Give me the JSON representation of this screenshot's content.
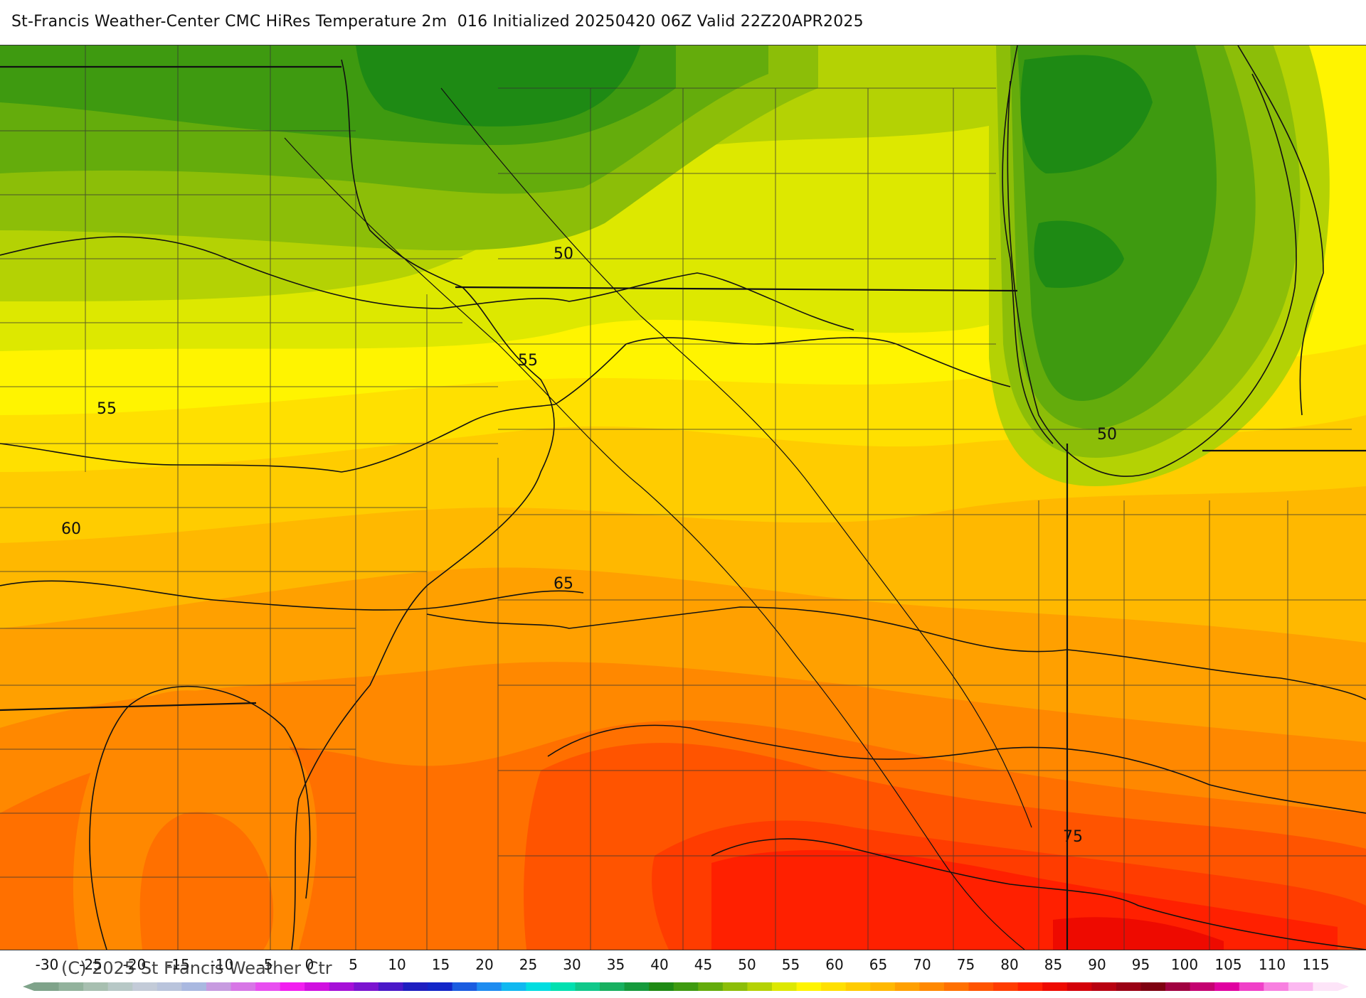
{
  "title": "St-Francis Weather-Center CMC HiRes Temperature 2m  016 Initialized 20250420 06Z Valid 22Z20APR2025",
  "copyright": "(C) 2025 St Francis Weather Ctr",
  "colorbar": {
    "ticks": [
      "-30",
      "-25",
      "-20",
      "-15",
      "-10",
      "-5",
      "0",
      "5",
      "10",
      "15",
      "20",
      "25",
      "30",
      "35",
      "40",
      "45",
      "50",
      "55",
      "60",
      "65",
      "70",
      "75",
      "80",
      "85",
      "90",
      "95",
      "100",
      "105",
      "110",
      "115"
    ],
    "colors": [
      "#7fa38a",
      "#92b29c",
      "#a7bfb0",
      "#b7c8c6",
      "#c3cbd8",
      "#b9c4dc",
      "#a9b8e0",
      "#c79be0",
      "#d776e6",
      "#e84ef0",
      "#f21ef0",
      "#d010e0",
      "#a610d8",
      "#7b14d0",
      "#4a18c8",
      "#1e1ec0",
      "#1226c8",
      "#1a5ce0",
      "#1e8cf0",
      "#10b8f0",
      "#00dde0",
      "#00e0b0",
      "#10c88a",
      "#18b060",
      "#159a3c",
      "#1e8a14",
      "#3e9a10",
      "#64ac0c",
      "#8cbe08",
      "#b4d204",
      "#dde800",
      "#fff400",
      "#ffe000",
      "#ffcc00",
      "#ffb800",
      "#ffa000",
      "#ff8800",
      "#ff7000",
      "#ff5400",
      "#ff3c00",
      "#ff2000",
      "#ee0a00",
      "#d40008",
      "#b80010",
      "#9a0014",
      "#7e0010",
      "#a00040",
      "#c40070",
      "#e000a0",
      "#f040c8",
      "#f880e0",
      "#fcb8f0",
      "#fde4f8"
    ]
  },
  "map": {
    "field_colors": {
      "t44": "#1e8a14",
      "t46": "#3e9a10",
      "t48": "#64ac0c",
      "t50": "#8cbe08",
      "t52": "#b4d204",
      "t54": "#dde800",
      "t56": "#fff400",
      "t58": "#ffe000",
      "t60": "#ffcc00",
      "t62": "#ffb800",
      "t64": "#ffa000",
      "t66": "#ff8800",
      "t68": "#ff7000",
      "t70": "#ff5400",
      "t72": "#ff3c00",
      "t74": "#ff2000",
      "t76": "#ee0a00"
    },
    "contour_labels": [
      "50",
      "55",
      "50",
      "55",
      "60",
      "65",
      "75"
    ]
  }
}
